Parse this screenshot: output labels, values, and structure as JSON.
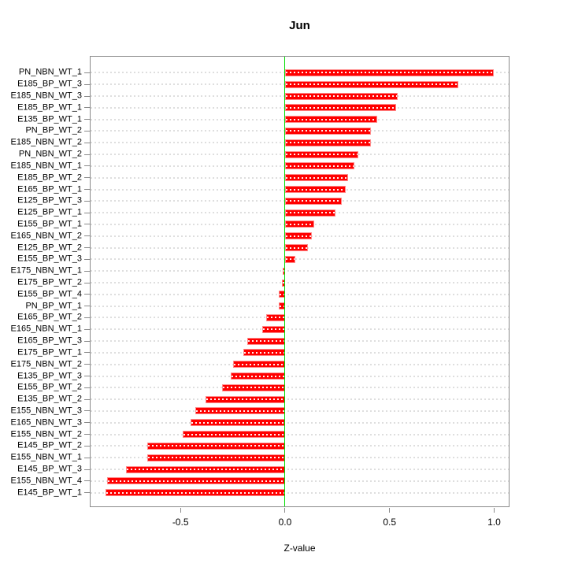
{
  "colors": {
    "bar": "#ff0000",
    "bar_border": "#ff8a8a",
    "bar_dash": "#ffffff",
    "grid": "#dedede",
    "zero_line": "#00dd00",
    "axis": "#8a8a8a",
    "text": "#000000",
    "background": "#ffffff"
  },
  "chart_data": {
    "type": "bar",
    "orientation": "horizontal",
    "title": "Jun",
    "xlabel": "Z-value",
    "ylabel": "",
    "xlim": [
      -0.93,
      1.07
    ],
    "x_ticks": [
      -0.5,
      0.0,
      0.5,
      1.0
    ],
    "x_tick_labels": [
      "-0.5",
      "0.0",
      "0.5",
      "1.0"
    ],
    "grid": "dotted horizontal line per category row",
    "legend": "none",
    "zero_reference_line": 0.0,
    "categories": [
      "PN_NBN_WT_1",
      "E185_BP_WT_3",
      "E185_NBN_WT_3",
      "E185_BP_WT_1",
      "E135_BP_WT_1",
      "PN_BP_WT_2",
      "E185_NBN_WT_2",
      "PN_NBN_WT_2",
      "E185_NBN_WT_1",
      "E185_BP_WT_2",
      "E165_BP_WT_1",
      "E125_BP_WT_3",
      "E125_BP_WT_1",
      "E155_BP_WT_1",
      "E165_NBN_WT_2",
      "E125_BP_WT_2",
      "E155_BP_WT_3",
      "E175_NBN_WT_1",
      "E175_BP_WT_2",
      "E155_BP_WT_4",
      "PN_BP_WT_1",
      "E165_BP_WT_2",
      "E165_NBN_WT_1",
      "E165_BP_WT_3",
      "E175_BP_WT_1",
      "E175_NBN_WT_2",
      "E135_BP_WT_3",
      "E155_BP_WT_2",
      "E135_BP_WT_2",
      "E155_NBN_WT_3",
      "E165_NBN_WT_3",
      "E155_NBN_WT_2",
      "E145_BP_WT_2",
      "E155_NBN_WT_1",
      "E145_BP_WT_3",
      "E155_NBN_WT_4",
      "E145_BP_WT_1"
    ],
    "values": [
      1.0,
      0.83,
      0.54,
      0.53,
      0.44,
      0.41,
      0.41,
      0.35,
      0.33,
      0.3,
      0.29,
      0.27,
      0.24,
      0.14,
      0.13,
      0.11,
      0.05,
      -0.01,
      -0.015,
      -0.03,
      -0.03,
      -0.09,
      -0.11,
      -0.18,
      -0.2,
      -0.25,
      -0.26,
      -0.3,
      -0.38,
      -0.43,
      -0.45,
      -0.49,
      -0.66,
      -0.66,
      -0.76,
      -0.85,
      -0.86
    ]
  }
}
